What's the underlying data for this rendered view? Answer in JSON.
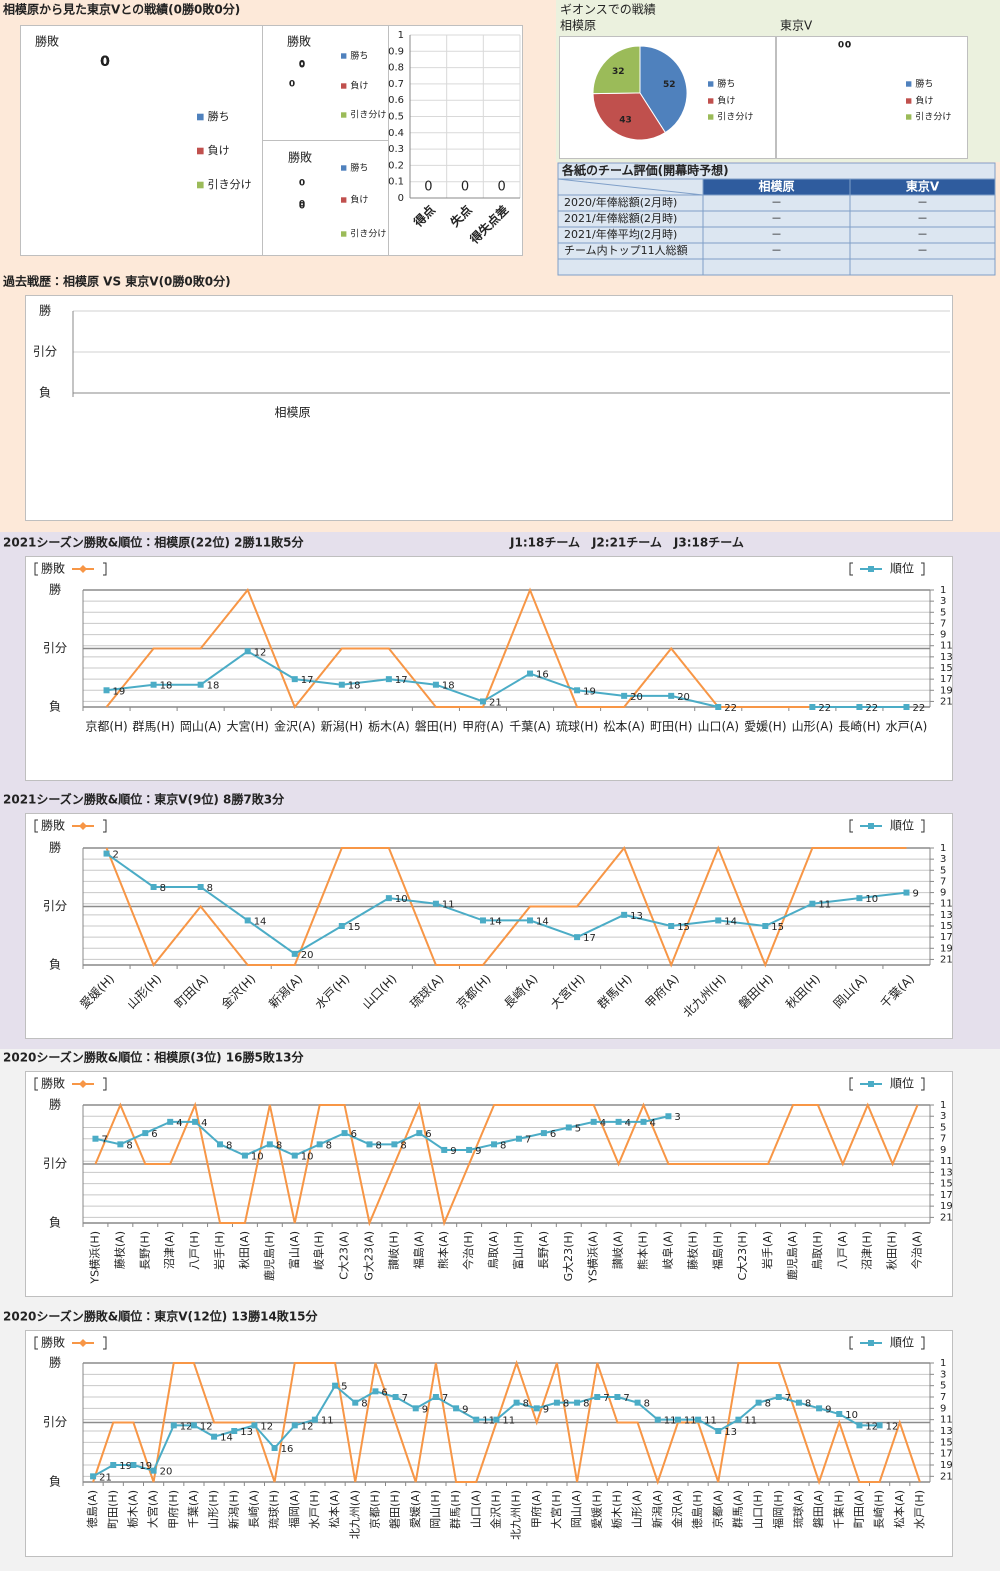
{
  "header": {
    "title": "相模原から見た東京Vとの戦績(0勝0敗0分)",
    "gions_title": "ギオンスでの戦績"
  },
  "table": {
    "title": "各紙のチーム評価(開幕時予想)",
    "columns": [
      "相模原",
      "東京V"
    ],
    "rows": [
      {
        "label": "2020/年俸総額(2月時)",
        "cells": [
          "－",
          "－"
        ]
      },
      {
        "label": "2021/年俸総額(2月時)",
        "cells": [
          "－",
          "－"
        ]
      },
      {
        "label": "2021/年俸平均(2月時)",
        "cells": [
          "－",
          "－"
        ]
      },
      {
        "label": "チーム内トップ11人総額",
        "cells": [
          "－",
          "－"
        ]
      }
    ]
  },
  "chart_data": [
    {
      "type": "pie",
      "title": "勝敗",
      "categories": [
        "勝ち",
        "負け",
        "引き分け"
      ],
      "values": [
        0,
        0,
        0
      ],
      "colors": [
        "#4f81bd",
        "#c0504d",
        "#9bbb59"
      ]
    },
    {
      "type": "pie",
      "title": "勝敗",
      "categories": [
        "勝ち",
        "負け",
        "引き分け"
      ],
      "values": [
        0,
        0,
        0
      ],
      "colors": [
        "#4f81bd",
        "#c0504d",
        "#9bbb59"
      ]
    },
    {
      "type": "pie",
      "title": "勝敗",
      "categories": [
        "勝ち",
        "負け",
        "引き分け"
      ],
      "values": [
        0,
        0,
        0
      ],
      "colors": [
        "#4f81bd",
        "#c0504d",
        "#9bbb59"
      ]
    },
    {
      "type": "bar",
      "categories": [
        "得点",
        "失点",
        "得失点差"
      ],
      "values": [
        0,
        0,
        0
      ],
      "color": "#4f81bd",
      "ylim": [
        0,
        1
      ],
      "yticks": [
        0,
        0.1,
        0.2,
        0.3,
        0.4,
        0.5,
        0.6,
        0.7,
        0.8,
        0.9,
        1
      ],
      "grid": true
    },
    {
      "type": "pie",
      "title": "相模原",
      "categories": [
        "勝ち",
        "負け",
        "引き分け"
      ],
      "values": [
        52,
        43,
        32
      ],
      "colors": [
        "#4f81bd",
        "#c0504d",
        "#9bbb59"
      ]
    },
    {
      "type": "pie",
      "title": "東京V",
      "categories": [
        "勝ち",
        "負け",
        "引き分け"
      ],
      "values": [
        0,
        0,
        0
      ],
      "colors": [
        "#4f81bd",
        "#c0504d",
        "#9bbb59"
      ]
    },
    {
      "type": "line",
      "title": "過去戦歴：相模原 VS 東京V(0勝0敗0分)",
      "categories": [
        "相模原"
      ],
      "ylim": [
        -1,
        1
      ],
      "yticks": [
        {
          "value": 1,
          "label": "勝"
        },
        {
          "value": 0,
          "label": "引分"
        },
        {
          "value": -1,
          "label": "負"
        }
      ]
    },
    {
      "type": "line",
      "title": "2021シーズン勝敗&順位：相模原(22位) 2勝11敗5分",
      "annotation": "J1:18チーム　J2:21チーム　J3:18チーム",
      "categories": [
        "京都(H)",
        "群馬(H)",
        "岡山(A)",
        "大宮(H)",
        "金沢(A)",
        "新潟(H)",
        "栃木(A)",
        "磐田(H)",
        "甲府(A)",
        "千葉(A)",
        "琉球(H)",
        "松本(A)",
        "町田(H)",
        "山口(A)",
        "愛媛(H)",
        "山形(A)",
        "長崎(H)",
        "水戸(A)"
      ],
      "series": [
        {
          "name": "勝敗",
          "color": "#f79646",
          "values": [
            -1,
            0,
            0,
            1,
            -1,
            0,
            0,
            -1,
            -1,
            1,
            -1,
            -1,
            0,
            -1,
            -1,
            -1,
            -1,
            -1
          ]
        },
        {
          "name": "順位",
          "color": "#4bacc6",
          "axis": "y2",
          "values": [
            19,
            18,
            18,
            12,
            17,
            18,
            17,
            18,
            21,
            16,
            19,
            20,
            20,
            22,
            null,
            22,
            22,
            22
          ]
        }
      ],
      "ylim": [
        -1,
        1
      ],
      "yticks": [
        {
          "value": 1,
          "label": "勝"
        },
        {
          "value": 0,
          "label": "引分"
        },
        {
          "value": -1,
          "label": "負"
        }
      ],
      "y2lim": [
        22,
        1
      ],
      "y2ticks": [
        1,
        3,
        5,
        7,
        9,
        11,
        13,
        15,
        17,
        19,
        21
      ],
      "grid": true
    },
    {
      "type": "line",
      "title": "2021シーズン勝敗&順位：東京V(9位) 8勝7敗3分",
      "categories": [
        "愛媛(H)",
        "山形(H)",
        "町田(A)",
        "金沢(H)",
        "新潟(A)",
        "水戸(H)",
        "山口(H)",
        "琉球(A)",
        "京都(H)",
        "長崎(A)",
        "大宮(H)",
        "群馬(H)",
        "甲府(A)",
        "北九州(H)",
        "磐田(H)",
        "秋田(H)",
        "岡山(A)",
        "千葉(A)"
      ],
      "series": [
        {
          "name": "勝敗",
          "color": "#f79646",
          "values": [
            1,
            -1,
            0,
            -1,
            -1,
            1,
            1,
            -1,
            -1,
            0,
            0,
            1,
            -1,
            1,
            -1,
            1,
            1,
            1
          ]
        },
        {
          "name": "順位",
          "color": "#4bacc6",
          "axis": "y2",
          "values": [
            2,
            8,
            8,
            14,
            20,
            15,
            10,
            11,
            14,
            14,
            17,
            13,
            15,
            14,
            15,
            11,
            10,
            9
          ]
        }
      ],
      "ylim": [
        -1,
        1
      ],
      "yticks": [
        {
          "value": 1,
          "label": "勝"
        },
        {
          "value": 0,
          "label": "引分"
        },
        {
          "value": -1,
          "label": "負"
        }
      ],
      "y2lim": [
        22,
        1
      ],
      "y2ticks": [
        1,
        3,
        5,
        7,
        9,
        11,
        13,
        15,
        17,
        19,
        21
      ],
      "grid": true
    },
    {
      "type": "line",
      "title": "2020シーズン勝敗&順位：相模原(3位) 16勝5敗13分",
      "categories": [
        "YS横浜(H)",
        "藤枝(A)",
        "長野(H)",
        "沼津(A)",
        "八戸(H)",
        "岩手(H)",
        "秋田(A)",
        "鹿児島(H)",
        "富山(A)",
        "岐阜(H)",
        "C大23(A)",
        "G大23(A)",
        "讃岐(H)",
        "福島(A)",
        "熊本(A)",
        "今治(H)",
        "鳥取(A)",
        "富山(H)",
        "長野(A)",
        "G大23(H)",
        "YS横浜(A)",
        "讃岐(A)",
        "熊本(H)",
        "岐阜(A)",
        "藤枝(H)",
        "福島(H)",
        "C大23(H)",
        "岩手(A)",
        "鹿児島(A)",
        "鳥取(H)",
        "八戸(A)",
        "沼津(H)",
        "秋田(H)",
        "今治(A)"
      ],
      "series": [
        {
          "name": "勝敗",
          "color": "#f79646",
          "values": [
            0,
            1,
            0,
            0,
            1,
            -1,
            -1,
            1,
            -1,
            1,
            1,
            -1,
            0,
            1,
            -1,
            0,
            1,
            1,
            1,
            1,
            1,
            0,
            1,
            0,
            0,
            0,
            0,
            0,
            1,
            1,
            0,
            1,
            0,
            1
          ]
        },
        {
          "name": "順位",
          "color": "#4bacc6",
          "axis": "y2",
          "values": [
            7,
            8,
            6,
            4,
            4,
            8,
            10,
            8,
            10,
            8,
            6,
            8,
            8,
            6,
            9,
            9,
            8,
            7,
            6,
            5,
            4,
            4,
            4,
            3,
            null,
            null,
            null,
            null,
            null,
            null,
            null,
            null,
            null,
            null
          ]
        }
      ],
      "ylim": [
        -1,
        1
      ],
      "yticks": [
        {
          "value": 1,
          "label": "勝"
        },
        {
          "value": 0,
          "label": "引分"
        },
        {
          "value": -1,
          "label": "負"
        }
      ],
      "y2lim": [
        22,
        1
      ],
      "y2ticks": [
        1,
        3,
        5,
        7,
        9,
        11,
        13,
        15,
        17,
        19,
        21
      ],
      "grid": true
    },
    {
      "type": "line",
      "title": "2020シーズン勝敗&順位：東京V(12位) 13勝14敗15分",
      "categories": [
        "徳島(A)",
        "町田(H)",
        "栃木(A)",
        "大宮(A)",
        "甲府(H)",
        "千葉(A)",
        "山形(H)",
        "新潟(H)",
        "長崎(A)",
        "琉球(H)",
        "福岡(A)",
        "水戸(H)",
        "松本(A)",
        "北九州(A)",
        "京都(H)",
        "磐田(H)",
        "愛媛(A)",
        "岡山(H)",
        "群馬(H)",
        "山口(A)",
        "金沢(H)",
        "北九州(H)",
        "甲府(A)",
        "大宮(H)",
        "岡山(A)",
        "愛媛(H)",
        "栃木(H)",
        "山形(A)",
        "新潟(A)",
        "金沢(A)",
        "徳島(H)",
        "京都(A)",
        "群馬(A)",
        "山口(H)",
        "福岡(H)",
        "琉球(A)",
        "磐田(A)",
        "千葉(H)",
        "町田(A)",
        "長崎(H)",
        "松本(A)",
        "水戸(H)"
      ],
      "series": [
        {
          "name": "勝敗",
          "color": "#f79646",
          "values": [
            -1,
            0,
            0,
            -1,
            1,
            1,
            0,
            0,
            0,
            -1,
            1,
            1,
            1,
            -1,
            1,
            0,
            -1,
            1,
            -1,
            -1,
            0,
            1,
            0,
            1,
            -1,
            1,
            0,
            0,
            -1,
            0,
            0,
            -1,
            1,
            1,
            1,
            0,
            -1,
            0,
            -1,
            -1,
            0,
            -1
          ]
        },
        {
          "name": "順位",
          "color": "#4bacc6",
          "axis": "y2",
          "values": [
            21,
            19,
            19,
            20,
            12,
            12,
            14,
            13,
            12,
            16,
            12,
            11,
            5,
            8,
            6,
            7,
            9,
            7,
            9,
            11,
            11,
            8,
            9,
            8,
            8,
            7,
            7,
            8,
            11,
            11,
            11,
            13,
            11,
            8,
            7,
            8,
            9,
            10,
            12,
            12,
            null,
            null
          ]
        }
      ],
      "ylim": [
        -1,
        1
      ],
      "yticks": [
        {
          "value": 1,
          "label": "勝"
        },
        {
          "value": 0,
          "label": "引分"
        },
        {
          "value": -1,
          "label": "負"
        }
      ],
      "y2lim": [
        22,
        1
      ],
      "y2ticks": [
        1,
        3,
        5,
        7,
        9,
        11,
        13,
        15,
        17,
        19,
        21
      ],
      "grid": true
    }
  ]
}
